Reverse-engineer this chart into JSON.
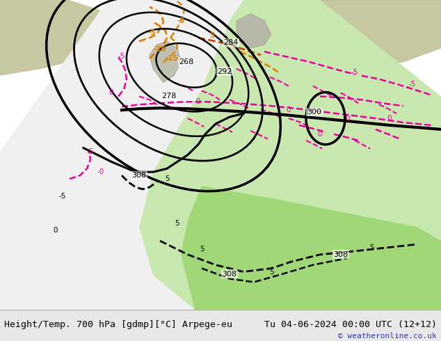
{
  "title_left": "Height/Temp. 700 hPa [gdmp][°C] Arpege-eu",
  "title_right": "Tu 04-06-2024 00:00 UTC (12+12)",
  "copyright": "© weatheronline.co.uk",
  "sea_color": "#c0c0c0",
  "land_color": "#c8c8a0",
  "white_area": "#f0f0f0",
  "green_light": "#c8e8b0",
  "green_bright": "#90d060",
  "footer_bg": "#e8e8e8",
  "footer_text_color": "#000000",
  "copyright_color": "#3333bb",
  "orange_color": "#e08000",
  "red_orange_color": "#e84000",
  "pink_color": "#e800a0",
  "fig_width": 6.34,
  "fig_height": 4.9,
  "dpi": 100
}
